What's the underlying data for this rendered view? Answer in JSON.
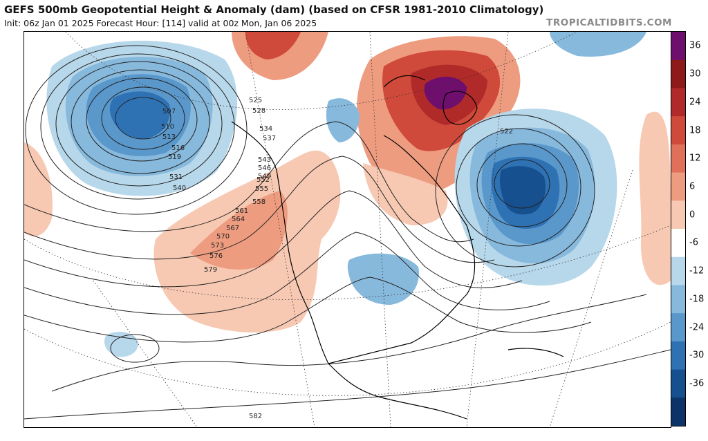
{
  "header": {
    "title": "GEFS 500mb Geopotential Height & Anomaly (dam) (based on CFSR 1981-2010 Climatology)",
    "subtitle": "Init: 06z Jan 01 2025   Forecast Hour: [114]   valid at 00z Mon, Jan 06 2025",
    "credit": "TROPICALTIDBITS.COM"
  },
  "colorbar": {
    "ticks": [
      "36",
      "30",
      "24",
      "18",
      "12",
      "6",
      "0",
      "-6",
      "-12",
      "-18",
      "-24",
      "-30",
      "-36"
    ],
    "colors": [
      "#6e0f6e",
      "#8e1a1a",
      "#b02a2a",
      "#cf4a3a",
      "#e0705a",
      "#ee9c80",
      "#f7c9b3",
      "#ffffff",
      "#b7d7ea",
      "#87b9dd",
      "#5a98cc",
      "#2f72b4",
      "#17508f",
      "#0c3468"
    ]
  },
  "contour_labels": {
    "l507": "507",
    "l510": "510",
    "l513": "513",
    "l516": "516",
    "l519": "519",
    "l531": "531",
    "l540": "540",
    "l525": "525",
    "l528": "528",
    "l534": "534",
    "l537": "537",
    "l543": "543",
    "l546": "546",
    "l549": "549",
    "l552": "552",
    "l555": "555",
    "l558": "558",
    "l561": "561",
    "l564": "564",
    "l567": "567",
    "l570": "570",
    "l573": "573",
    "l576": "576",
    "l579": "579",
    "l582": "582",
    "l522": "522"
  }
}
